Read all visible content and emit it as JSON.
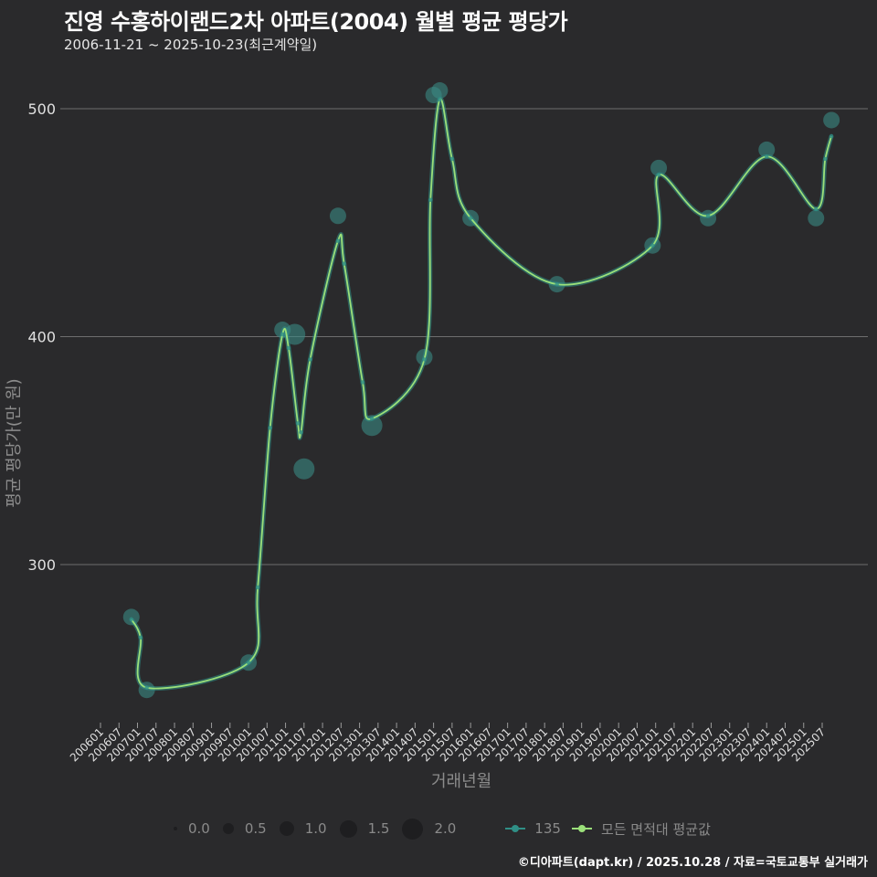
{
  "header": {
    "title": "진영 수홍하이랜드2차 아파트(2004) 월별 평균 평당가",
    "subtitle": "2006-11-21 ~ 2025-10-23(최근계약일)"
  },
  "footer": {
    "credit": "©디아파트(dapt.kr) / 2025.10.28 / 자료=국토교통부 실거래가"
  },
  "colors": {
    "background": "#2a2a2c",
    "gridline": "#6e6e6e",
    "series_135": "#2f8f86",
    "series_135_bubble": "#3a8a84",
    "series_all_avg": "#9be07a",
    "axis_text": "#e0e0e0",
    "axis_title": "#8c8c8c"
  },
  "legend": {
    "size_title": "",
    "sizes": [
      {
        "label": "0.0",
        "diameter": 4
      },
      {
        "label": "0.5",
        "diameter": 12
      },
      {
        "label": "1.0",
        "diameter": 16
      },
      {
        "label": "1.5",
        "diameter": 19
      },
      {
        "label": "2.0",
        "diameter": 23
      }
    ],
    "lines": [
      {
        "label": "135",
        "color": "#2f8f86"
      },
      {
        "label": "모든 면적대 평균값",
        "color": "#9be07a"
      }
    ]
  },
  "chart_data": {
    "type": "line",
    "title": "진영 수홍하이랜드2차 아파트(2004) 월별 평균 평당가",
    "subtitle": "2006-11-21 ~ 2025-10-23(최근계약일)",
    "xlabel": "거래년월",
    "ylabel": "평균 평당가(만 원)",
    "ylim": [
      232,
      518
    ],
    "yticks": [
      300,
      400,
      500
    ],
    "grid": {
      "horizontal": true,
      "vertical": false
    },
    "legend_position": "bottom",
    "x_ticks": [
      "200601",
      "200607",
      "200701",
      "200707",
      "200801",
      "200807",
      "200901",
      "200907",
      "201001",
      "201007",
      "201101",
      "201107",
      "201201",
      "201207",
      "201301",
      "201307",
      "201401",
      "201407",
      "201501",
      "201507",
      "201601",
      "201607",
      "201701",
      "201707",
      "201801",
      "201807",
      "201901",
      "201907",
      "202001",
      "202007",
      "202101",
      "202107",
      "202201",
      "202207",
      "202301",
      "202307",
      "202401",
      "202407",
      "202501",
      "202507"
    ],
    "series": [
      {
        "name": "135",
        "kind": "bubble",
        "points": [
          {
            "x": "200611",
            "y": 277,
            "size": 1.0
          },
          {
            "x": "200704",
            "y": 245,
            "size": 1.0
          },
          {
            "x": "201001",
            "y": 257,
            "size": 1.0
          },
          {
            "x": "201012",
            "y": 403,
            "size": 1.0
          },
          {
            "x": "201104",
            "y": 401,
            "size": 1.5
          },
          {
            "x": "201107",
            "y": 342,
            "size": 1.5
          },
          {
            "x": "201206",
            "y": 453,
            "size": 1.0
          },
          {
            "x": "201305",
            "y": 361,
            "size": 1.5
          },
          {
            "x": "201410",
            "y": 391,
            "size": 1.0
          },
          {
            "x": "201501",
            "y": 506,
            "size": 1.0
          },
          {
            "x": "201503",
            "y": 508,
            "size": 1.0
          },
          {
            "x": "201601",
            "y": 452,
            "size": 1.0
          },
          {
            "x": "201805",
            "y": 423,
            "size": 1.0
          },
          {
            "x": "202012",
            "y": 440,
            "size": 1.0
          },
          {
            "x": "202102",
            "y": 474,
            "size": 1.0
          },
          {
            "x": "202206",
            "y": 452,
            "size": 1.0
          },
          {
            "x": "202401",
            "y": 482,
            "size": 1.0
          },
          {
            "x": "202505",
            "y": 452,
            "size": 1.0
          },
          {
            "x": "202510",
            "y": 495,
            "size": 1.0
          }
        ]
      },
      {
        "name": "모든 면적대 평균값",
        "kind": "smoothed-line",
        "points": [
          {
            "x": "200611",
            "y": 276
          },
          {
            "x": "200702",
            "y": 268
          },
          {
            "x": "200704",
            "y": 246
          },
          {
            "x": "201001",
            "y": 257
          },
          {
            "x": "201004",
            "y": 290
          },
          {
            "x": "201008",
            "y": 360
          },
          {
            "x": "201012",
            "y": 401
          },
          {
            "x": "201102",
            "y": 395
          },
          {
            "x": "201105",
            "y": 362
          },
          {
            "x": "201106",
            "y": 358
          },
          {
            "x": "201109",
            "y": 390
          },
          {
            "x": "201206",
            "y": 442
          },
          {
            "x": "201208",
            "y": 432
          },
          {
            "x": "201302",
            "y": 380
          },
          {
            "x": "201305",
            "y": 364
          },
          {
            "x": "201410",
            "y": 390
          },
          {
            "x": "201412",
            "y": 460
          },
          {
            "x": "201503",
            "y": 504
          },
          {
            "x": "201507",
            "y": 478
          },
          {
            "x": "201601",
            "y": 452
          },
          {
            "x": "201805",
            "y": 423
          },
          {
            "x": "202012",
            "y": 440
          },
          {
            "x": "202102",
            "y": 471
          },
          {
            "x": "202206",
            "y": 453
          },
          {
            "x": "202401",
            "y": 479
          },
          {
            "x": "202505",
            "y": 456
          },
          {
            "x": "202508",
            "y": 478
          },
          {
            "x": "202510",
            "y": 488
          }
        ]
      }
    ]
  }
}
